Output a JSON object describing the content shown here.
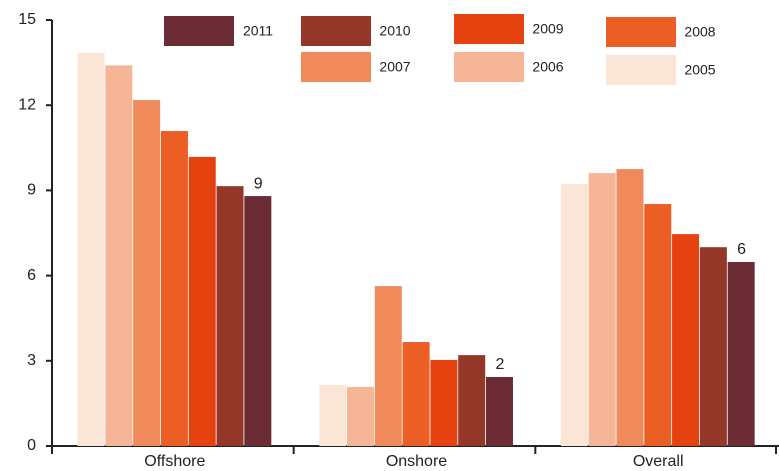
{
  "chart_data": {
    "type": "bar",
    "categories": [
      "Offshore",
      "Onshore",
      "Overall"
    ],
    "series": [
      {
        "name": "2005",
        "color": "#fbe5d6",
        "values": [
          13.84,
          2.15,
          9.23
        ]
      },
      {
        "name": "2006",
        "color": "#f5b596",
        "values": [
          13.4,
          2.08,
          9.61
        ]
      },
      {
        "name": "2007",
        "color": "#f08a5a",
        "values": [
          12.18,
          5.63,
          9.75
        ]
      },
      {
        "name": "2008",
        "color": "#eb5e24",
        "values": [
          11.09,
          3.66,
          8.52
        ]
      },
      {
        "name": "2009",
        "color": "#e5420f",
        "values": [
          10.18,
          3.03,
          7.46
        ]
      },
      {
        "name": "2010",
        "color": "#943628",
        "values": [
          9.15,
          3.2,
          7.0
        ]
      },
      {
        "name": "2011",
        "color": "#6b2c36",
        "values": [
          8.8,
          2.43,
          6.48
        ],
        "value_labels": [
          "9",
          "2",
          "6"
        ]
      }
    ],
    "ylim": [
      0,
      15
    ],
    "yticks": [
      0,
      3,
      6,
      9,
      12,
      15
    ],
    "grid": false
  }
}
